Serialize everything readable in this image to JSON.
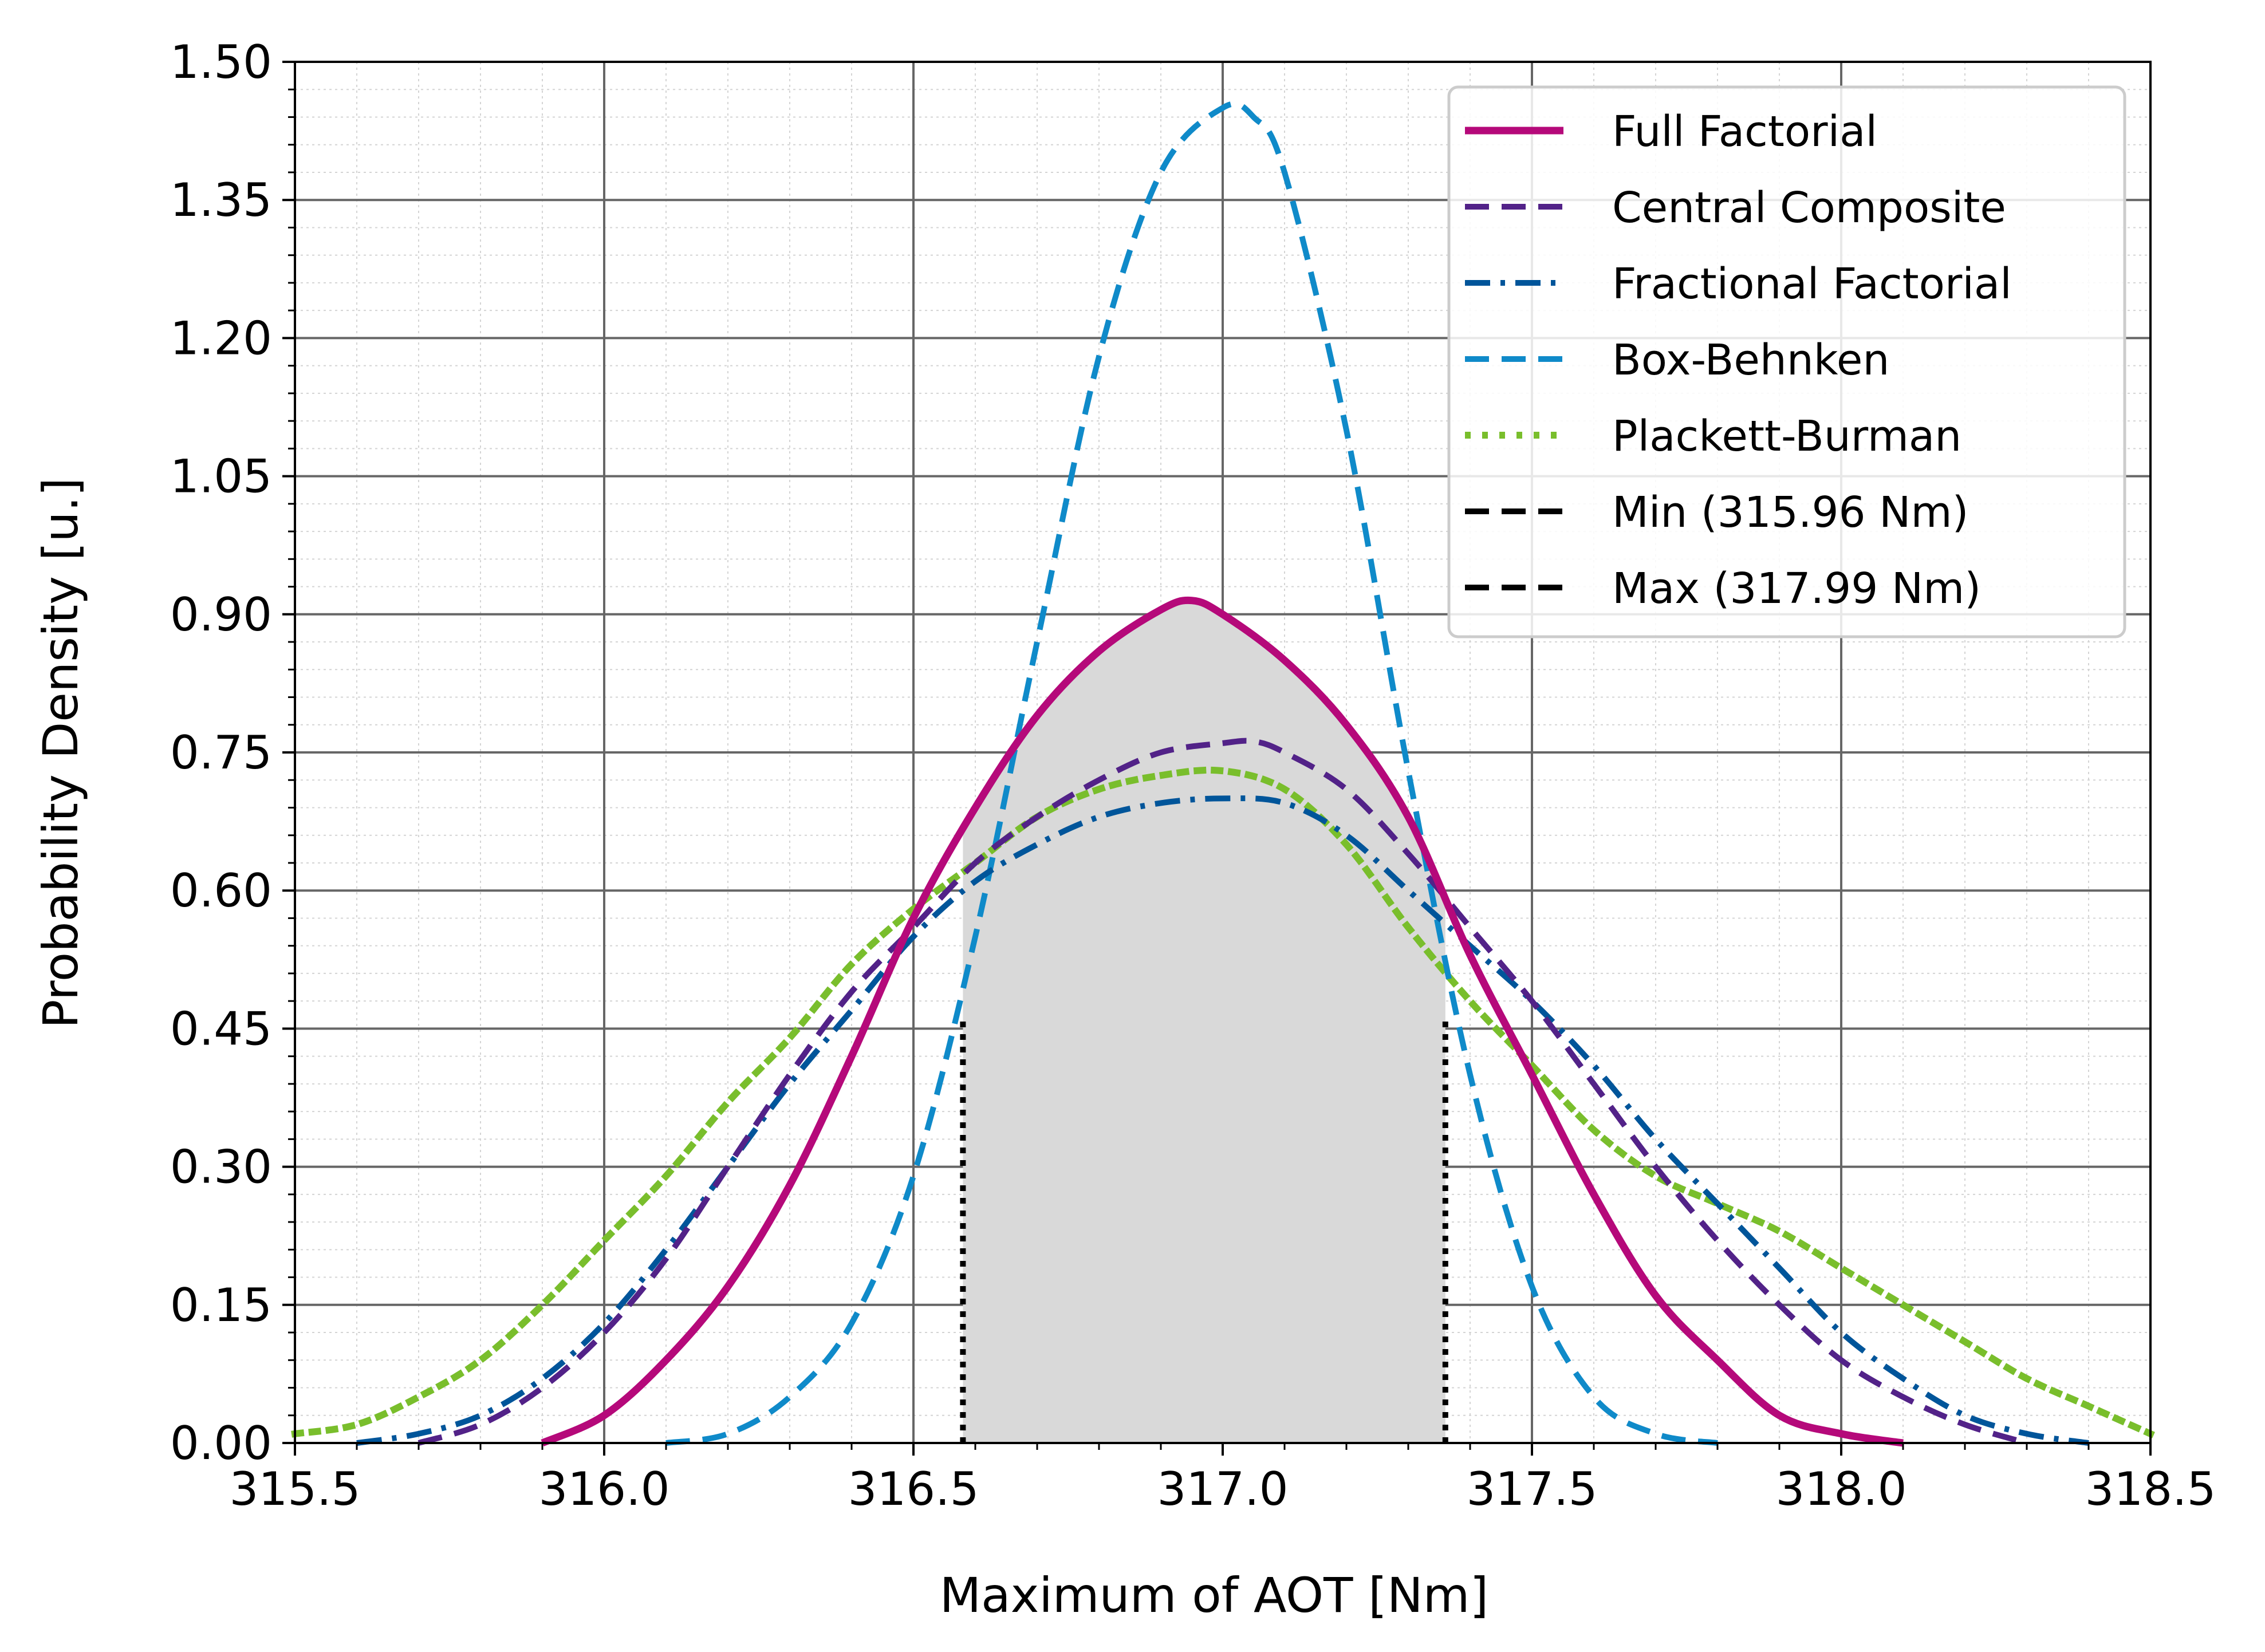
{
  "chart_data": {
    "type": "line",
    "title": "",
    "xlabel": "Maximum of AOT [Nm]",
    "ylabel": "Probability Density [u.]",
    "xlim": [
      315.5,
      318.5
    ],
    "ylim": [
      0.0,
      1.5
    ],
    "xticks": [
      "315.5",
      "316.0",
      "316.5",
      "317.0",
      "317.5",
      "318.0",
      "318.5"
    ],
    "yticks": [
      "0.00",
      "0.15",
      "0.30",
      "0.45",
      "0.60",
      "0.75",
      "0.90",
      "1.05",
      "1.20",
      "1.35",
      "1.50"
    ],
    "grid": true,
    "legend_position": "top-right",
    "shaded_interval": {
      "x_from": 316.58,
      "x_to": 317.36,
      "fill_color": "#d9d9d9",
      "boundary_ymax": 0.46
    },
    "series": [
      {
        "name": "Full Factorial",
        "color": "#b5097a",
        "style": "solid",
        "x": [
          315.9,
          316.0,
          316.1,
          316.2,
          316.3,
          316.4,
          316.5,
          316.6,
          316.7,
          316.8,
          316.9,
          316.95,
          317.0,
          317.1,
          317.2,
          317.3,
          317.4,
          317.5,
          317.6,
          317.7,
          317.8,
          317.9,
          318.0,
          318.1
        ],
        "y": [
          0.0,
          0.03,
          0.09,
          0.17,
          0.28,
          0.42,
          0.57,
          0.69,
          0.79,
          0.86,
          0.905,
          0.915,
          0.9,
          0.85,
          0.78,
          0.68,
          0.53,
          0.4,
          0.27,
          0.16,
          0.09,
          0.03,
          0.01,
          0.0
        ]
      },
      {
        "name": "Central Composite",
        "color": "#522288",
        "style": "dashed",
        "x": [
          315.7,
          315.8,
          315.9,
          316.0,
          316.1,
          316.2,
          316.3,
          316.4,
          316.5,
          316.6,
          316.7,
          316.8,
          316.9,
          317.0,
          317.05,
          317.1,
          317.2,
          317.3,
          317.4,
          317.5,
          317.6,
          317.7,
          317.8,
          317.9,
          318.0,
          318.1,
          318.2,
          318.3
        ],
        "y": [
          0.0,
          0.02,
          0.06,
          0.12,
          0.2,
          0.3,
          0.4,
          0.49,
          0.56,
          0.63,
          0.68,
          0.72,
          0.75,
          0.76,
          0.762,
          0.75,
          0.71,
          0.64,
          0.56,
          0.48,
          0.39,
          0.3,
          0.22,
          0.15,
          0.09,
          0.05,
          0.02,
          0.0
        ]
      },
      {
        "name": "Fractional Factorial",
        "color": "#00559a",
        "style": "dashdot",
        "x": [
          315.6,
          315.7,
          315.8,
          315.9,
          316.0,
          316.1,
          316.2,
          316.3,
          316.4,
          316.5,
          316.6,
          316.7,
          316.8,
          316.9,
          317.0,
          317.1,
          317.2,
          317.3,
          317.4,
          317.5,
          317.6,
          317.7,
          317.8,
          317.9,
          318.0,
          318.1,
          318.2,
          318.3,
          318.4
        ],
        "y": [
          0.0,
          0.01,
          0.03,
          0.07,
          0.13,
          0.21,
          0.3,
          0.39,
          0.47,
          0.55,
          0.61,
          0.65,
          0.68,
          0.695,
          0.7,
          0.695,
          0.66,
          0.6,
          0.54,
          0.48,
          0.41,
          0.33,
          0.26,
          0.19,
          0.12,
          0.07,
          0.03,
          0.01,
          0.0
        ]
      },
      {
        "name": "Box-Behnken",
        "color": "#0f8ac9",
        "style": "dashed",
        "x": [
          316.1,
          316.2,
          316.3,
          316.4,
          316.5,
          316.6,
          316.7,
          316.8,
          316.9,
          317.0,
          317.05,
          317.1,
          317.2,
          317.3,
          317.4,
          317.5,
          317.6,
          317.7,
          317.8
        ],
        "y": [
          0.0,
          0.01,
          0.05,
          0.13,
          0.29,
          0.55,
          0.87,
          1.18,
          1.38,
          1.45,
          1.44,
          1.38,
          1.1,
          0.73,
          0.4,
          0.17,
          0.05,
          0.01,
          0.0
        ]
      },
      {
        "name": "Plackett-Burman",
        "color": "#79be2c",
        "style": "dotted",
        "x": [
          315.5,
          315.6,
          315.7,
          315.8,
          315.9,
          316.0,
          316.1,
          316.2,
          316.3,
          316.4,
          316.5,
          316.6,
          316.7,
          316.8,
          316.9,
          317.0,
          317.1,
          317.2,
          317.3,
          317.4,
          317.5,
          317.6,
          317.7,
          317.8,
          317.9,
          318.0,
          318.1,
          318.2,
          318.3,
          318.4,
          318.5
        ],
        "y": [
          0.01,
          0.02,
          0.05,
          0.09,
          0.15,
          0.22,
          0.29,
          0.37,
          0.44,
          0.52,
          0.58,
          0.63,
          0.68,
          0.71,
          0.725,
          0.73,
          0.71,
          0.65,
          0.56,
          0.48,
          0.41,
          0.34,
          0.29,
          0.26,
          0.23,
          0.19,
          0.15,
          0.11,
          0.07,
          0.04,
          0.01
        ]
      }
    ],
    "reference_lines": [
      {
        "name": "Min (315.96 Nm)",
        "color": "#000000",
        "style": "dashed"
      },
      {
        "name": "Max (317.99 Nm)",
        "color": "#000000",
        "style": "dashed"
      }
    ]
  }
}
